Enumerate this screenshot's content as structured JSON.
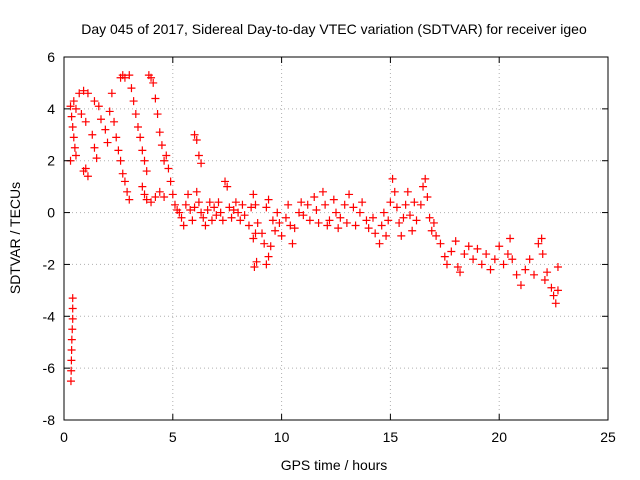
{
  "chart_data": {
    "type": "scatter",
    "title": "Day 045 of 2017, Sidereal Day-to-day VTEC variation (SDTVAR) for receiver igeo",
    "xlabel": "GPS time / hours",
    "ylabel": "SDTVAR / TECUs",
    "xlim": [
      0,
      25
    ],
    "ylim": [
      -8,
      6
    ],
    "x_ticks": [
      0,
      5,
      10,
      15,
      20,
      25
    ],
    "y_ticks": [
      -8,
      -6,
      -4,
      -2,
      0,
      2,
      4,
      6
    ],
    "x_tick_labels": [
      "0",
      "5",
      "10",
      "15",
      "20",
      "25"
    ],
    "y_tick_labels": [
      "-8",
      "-6",
      "-4",
      "-2",
      "0",
      "2",
      "4",
      "6"
    ],
    "grid": true,
    "marker": "+",
    "series": [
      {
        "name": "SDTVAR",
        "color": "#ff0000",
        "points": [
          [
            0.3,
            4.1
          ],
          [
            0.35,
            3.7
          ],
          [
            0.4,
            3.3
          ],
          [
            0.45,
            2.9
          ],
          [
            0.5,
            2.5
          ],
          [
            0.55,
            2.2
          ],
          [
            0.3,
            2.0
          ],
          [
            0.45,
            4.3
          ],
          [
            0.55,
            4.0
          ],
          [
            0.4,
            -3.3
          ],
          [
            0.4,
            -3.7
          ],
          [
            0.4,
            -4.1
          ],
          [
            0.38,
            -4.5
          ],
          [
            0.36,
            -4.9
          ],
          [
            0.35,
            -5.3
          ],
          [
            0.34,
            -5.7
          ],
          [
            0.33,
            -6.1
          ],
          [
            0.32,
            -6.5
          ],
          [
            0.7,
            4.6
          ],
          [
            0.9,
            4.7
          ],
          [
            1.1,
            4.6
          ],
          [
            0.8,
            3.8
          ],
          [
            1.0,
            3.5
          ],
          [
            0.9,
            1.6
          ],
          [
            1.1,
            1.4
          ],
          [
            1.0,
            1.7
          ],
          [
            1.3,
            3.0
          ],
          [
            1.4,
            2.5
          ],
          [
            1.5,
            2.1
          ],
          [
            1.4,
            4.3
          ],
          [
            1.6,
            4.1
          ],
          [
            1.7,
            3.6
          ],
          [
            1.9,
            3.2
          ],
          [
            2.0,
            2.7
          ],
          [
            2.1,
            3.9
          ],
          [
            2.2,
            4.6
          ],
          [
            2.3,
            3.5
          ],
          [
            2.4,
            2.9
          ],
          [
            2.5,
            2.4
          ],
          [
            2.6,
            5.2
          ],
          [
            2.7,
            5.3
          ],
          [
            2.8,
            5.2
          ],
          [
            3.0,
            5.3
          ],
          [
            2.6,
            2.0
          ],
          [
            2.7,
            1.5
          ],
          [
            2.8,
            1.2
          ],
          [
            2.9,
            0.8
          ],
          [
            3.0,
            0.5
          ],
          [
            3.1,
            4.8
          ],
          [
            3.2,
            4.3
          ],
          [
            3.3,
            3.8
          ],
          [
            3.4,
            3.3
          ],
          [
            3.5,
            2.9
          ],
          [
            3.6,
            2.4
          ],
          [
            3.7,
            2.0
          ],
          [
            3.8,
            1.6
          ],
          [
            3.9,
            5.3
          ],
          [
            4.0,
            5.2
          ],
          [
            4.1,
            5.0
          ],
          [
            4.2,
            4.4
          ],
          [
            4.3,
            3.8
          ],
          [
            4.4,
            3.1
          ],
          [
            4.5,
            2.6
          ],
          [
            4.6,
            2.0
          ],
          [
            3.6,
            1.0
          ],
          [
            3.7,
            0.7
          ],
          [
            3.8,
            0.5
          ],
          [
            4.0,
            0.4
          ],
          [
            4.2,
            0.6
          ],
          [
            4.4,
            0.8
          ],
          [
            4.6,
            0.6
          ],
          [
            4.7,
            2.2
          ],
          [
            4.8,
            1.7
          ],
          [
            4.9,
            1.2
          ],
          [
            5.0,
            0.7
          ],
          [
            5.1,
            0.3
          ],
          [
            5.2,
            0.1
          ],
          [
            5.3,
            0.0
          ],
          [
            5.4,
            -0.2
          ],
          [
            5.5,
            -0.5
          ],
          [
            5.6,
            0.3
          ],
          [
            5.7,
            0.7
          ],
          [
            5.8,
            0.1
          ],
          [
            5.9,
            -0.3
          ],
          [
            6.0,
            0.2
          ],
          [
            6.1,
            0.8
          ],
          [
            6.2,
            0.4
          ],
          [
            6.3,
            0.0
          ],
          [
            6.4,
            -0.2
          ],
          [
            6.5,
            -0.5
          ],
          [
            6.0,
            3.0
          ],
          [
            6.1,
            2.8
          ],
          [
            6.2,
            2.2
          ],
          [
            6.3,
            1.9
          ],
          [
            6.6,
            0.1
          ],
          [
            6.7,
            0.4
          ],
          [
            6.8,
            -0.3
          ],
          [
            6.9,
            0.2
          ],
          [
            7.0,
            -0.1
          ],
          [
            7.1,
            0.4
          ],
          [
            7.2,
            0.0
          ],
          [
            7.3,
            -0.3
          ],
          [
            7.4,
            1.2
          ],
          [
            7.5,
            1.0
          ],
          [
            7.6,
            0.2
          ],
          [
            7.7,
            -0.2
          ],
          [
            7.8,
            0.1
          ],
          [
            7.9,
            0.4
          ],
          [
            8.0,
            0.0
          ],
          [
            8.1,
            -0.3
          ],
          [
            8.2,
            0.3
          ],
          [
            8.3,
            -0.1
          ],
          [
            8.5,
            -0.5
          ],
          [
            8.6,
            0.2
          ],
          [
            8.7,
            0.7
          ],
          [
            8.8,
            0.3
          ],
          [
            8.9,
            -0.4
          ],
          [
            8.7,
            -1.0
          ],
          [
            8.8,
            -0.8
          ],
          [
            8.75,
            -2.1
          ],
          [
            8.85,
            -1.9
          ],
          [
            9.1,
            -0.8
          ],
          [
            9.2,
            -1.2
          ],
          [
            9.3,
            -2.0
          ],
          [
            9.4,
            -1.7
          ],
          [
            9.5,
            -1.3
          ],
          [
            9.3,
            0.2
          ],
          [
            9.4,
            0.5
          ],
          [
            9.6,
            -0.3
          ],
          [
            9.7,
            -0.7
          ],
          [
            9.8,
            0.0
          ],
          [
            9.9,
            -0.4
          ],
          [
            10.0,
            -0.9
          ],
          [
            10.2,
            -0.2
          ],
          [
            10.3,
            0.3
          ],
          [
            10.4,
            -0.5
          ],
          [
            10.5,
            -1.2
          ],
          [
            10.6,
            -0.6
          ],
          [
            10.8,
            0.0
          ],
          [
            10.9,
            0.4
          ],
          [
            11.0,
            -0.1
          ],
          [
            11.2,
            0.3
          ],
          [
            11.3,
            -0.3
          ],
          [
            11.5,
            0.6
          ],
          [
            11.6,
            0.1
          ],
          [
            11.7,
            -0.4
          ],
          [
            11.9,
            0.8
          ],
          [
            12.0,
            0.3
          ],
          [
            12.1,
            -0.5
          ],
          [
            12.2,
            -0.3
          ],
          [
            12.4,
            0.5
          ],
          [
            12.5,
            0.0
          ],
          [
            12.6,
            -0.6
          ],
          [
            12.7,
            -0.2
          ],
          [
            12.9,
            0.3
          ],
          [
            13.0,
            -0.4
          ],
          [
            13.1,
            0.7
          ],
          [
            13.3,
            0.2
          ],
          [
            13.4,
            -0.5
          ],
          [
            13.6,
            0.0
          ],
          [
            13.7,
            0.4
          ],
          [
            13.9,
            -0.3
          ],
          [
            14.0,
            -0.6
          ],
          [
            14.2,
            -0.2
          ],
          [
            14.3,
            -0.8
          ],
          [
            14.5,
            -1.2
          ],
          [
            14.6,
            -0.5
          ],
          [
            14.7,
            0.0
          ],
          [
            14.8,
            -0.9
          ],
          [
            14.9,
            -0.3
          ],
          [
            15.0,
            0.4
          ],
          [
            15.1,
            1.3
          ],
          [
            15.2,
            0.8
          ],
          [
            15.3,
            0.2
          ],
          [
            15.4,
            -0.4
          ],
          [
            15.5,
            -0.9
          ],
          [
            15.6,
            -0.2
          ],
          [
            15.7,
            0.3
          ],
          [
            15.8,
            0.8
          ],
          [
            15.9,
            -0.1
          ],
          [
            16.0,
            -0.7
          ],
          [
            16.1,
            0.4
          ],
          [
            16.2,
            -0.3
          ],
          [
            16.4,
            0.3
          ],
          [
            16.5,
            1.0
          ],
          [
            16.6,
            1.3
          ],
          [
            16.7,
            0.6
          ],
          [
            16.8,
            -0.2
          ],
          [
            16.9,
            -0.7
          ],
          [
            17.0,
            -0.4
          ],
          [
            17.1,
            -0.9
          ],
          [
            17.3,
            -1.2
          ],
          [
            17.5,
            -1.7
          ],
          [
            17.6,
            -2.0
          ],
          [
            17.8,
            -1.5
          ],
          [
            18.0,
            -1.1
          ],
          [
            18.1,
            -2.1
          ],
          [
            18.2,
            -2.3
          ],
          [
            18.4,
            -1.6
          ],
          [
            18.6,
            -1.3
          ],
          [
            18.8,
            -1.8
          ],
          [
            19.0,
            -1.4
          ],
          [
            19.2,
            -2.0
          ],
          [
            19.4,
            -1.6
          ],
          [
            19.6,
            -2.2
          ],
          [
            19.8,
            -1.8
          ],
          [
            20.0,
            -1.3
          ],
          [
            20.2,
            -2.0
          ],
          [
            20.4,
            -1.6
          ],
          [
            20.5,
            -1.0
          ],
          [
            20.6,
            -1.8
          ],
          [
            20.8,
            -2.4
          ],
          [
            21.0,
            -2.8
          ],
          [
            21.2,
            -2.2
          ],
          [
            21.4,
            -1.8
          ],
          [
            21.6,
            -2.4
          ],
          [
            21.8,
            -1.2
          ],
          [
            22.0,
            -1.6
          ],
          [
            22.1,
            -2.6
          ],
          [
            22.2,
            -2.3
          ],
          [
            22.4,
            -2.9
          ],
          [
            22.5,
            -3.2
          ],
          [
            22.6,
            -3.5
          ],
          [
            22.7,
            -2.1
          ],
          [
            22.7,
            -3.0
          ],
          [
            21.95,
            -1.0
          ]
        ]
      }
    ]
  }
}
